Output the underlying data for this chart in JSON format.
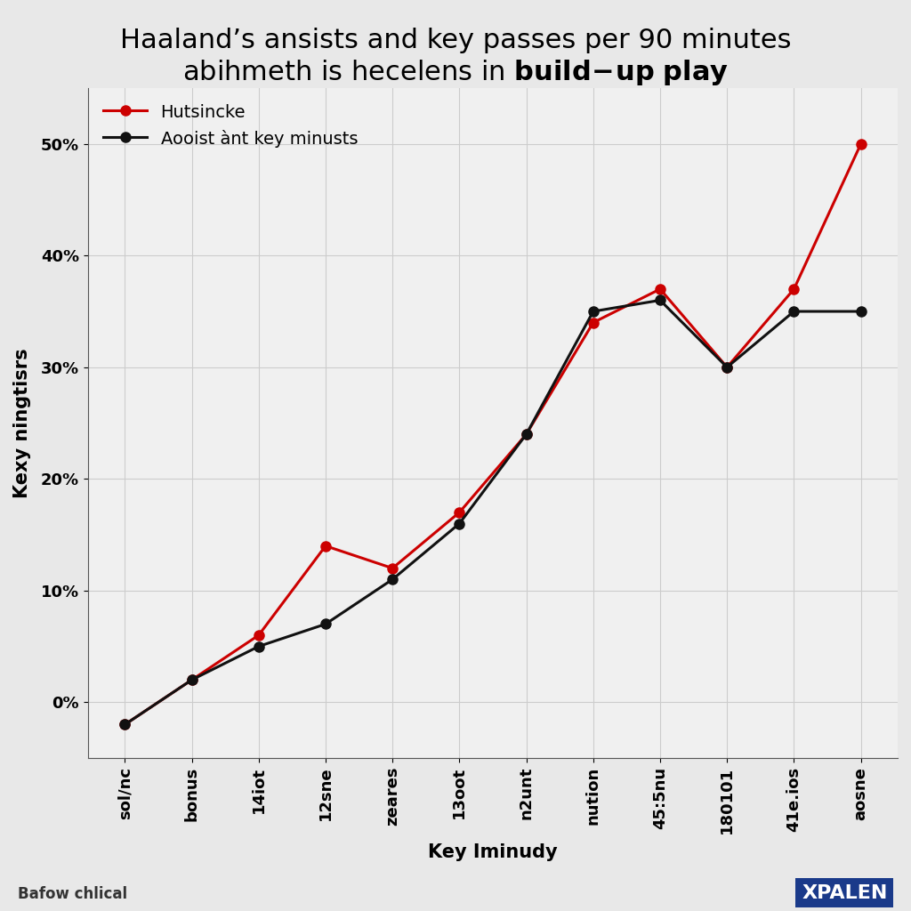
{
  "title_line1": "Haaland’s ansists and key passes per 90 minutes",
  "title_line2_normal": "abihmeth is hecelens in ",
  "xlabel": "Key Iminudy",
  "ylabel": "Kexy ningtisrs",
  "legend_red": "Hutsincke",
  "legend_black": "Aooist ànt key minusts",
  "x_labels": [
    "sol/nc",
    "bonus",
    "14iot",
    "12sne",
    "zeares",
    "13oot",
    "n2unt",
    "nution",
    "45:5nu",
    "180101",
    "41e.ios",
    "aosne"
  ],
  "red_values": [
    -2,
    2,
    6,
    14,
    12,
    17,
    24,
    34,
    37,
    30,
    37,
    50
  ],
  "black_values": [
    -2,
    2,
    5,
    7,
    11,
    16,
    24,
    35,
    36,
    30,
    35,
    35
  ],
  "y_ticks": [
    0,
    10,
    20,
    30,
    40,
    50
  ],
  "y_tick_labels": [
    "0%",
    "10%",
    "20%",
    "30%",
    "40%",
    "50%"
  ],
  "background_color": "#e8e8e8",
  "plot_bg_color": "#f0f0f0",
  "red_color": "#cc0000",
  "black_color": "#111111",
  "grid_color": "#cccccc",
  "footer_left": "Bafow chlical",
  "footer_right": "XPALEN",
  "marker_size": 8,
  "line_width": 2.2,
  "title_fontsize": 22,
  "axis_label_fontsize": 15,
  "tick_fontsize": 13,
  "legend_fontsize": 14
}
